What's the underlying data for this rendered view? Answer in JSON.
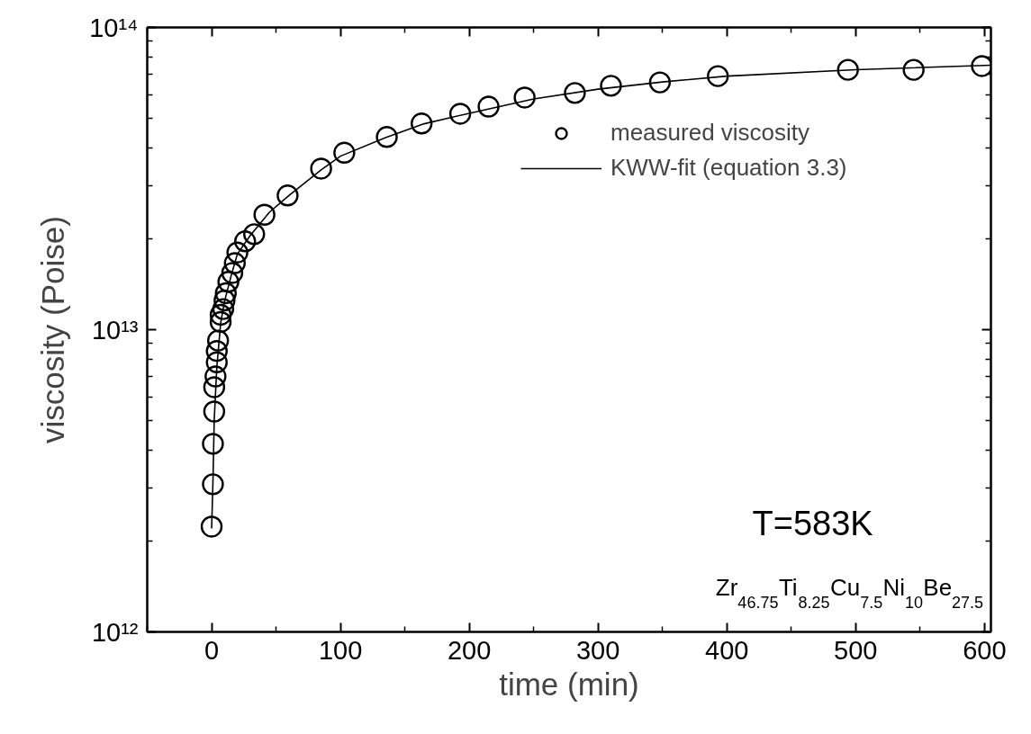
{
  "chart_data": {
    "type": "scatter",
    "xlabel": "time (min)",
    "ylabel": "viscosity (Poise)",
    "log": "y",
    "xlim": [
      -50,
      605
    ],
    "ylim": [
      1000000000000.0,
      100000000000000.0
    ],
    "xticks": [
      0,
      100,
      200,
      300,
      400,
      500,
      600
    ],
    "yticks": [
      {
        "value": 1000000000000.0,
        "label": "10¹²"
      },
      {
        "value": 10000000000000.0,
        "label": "10¹³"
      },
      {
        "value": 100000000000000.0,
        "label": "10¹⁴"
      }
    ],
    "grid": false,
    "legend": "top right",
    "annotations": [
      "T=583K",
      "Zr$_{46.75}$Ti$_{8.25}$Cu$_{7.5}$Ni$_{10}$Be$_{27.5}$"
    ],
    "series": [
      {
        "name": "measured viscosity",
        "marker": "circle",
        "color": "#000000",
        "x": [
          0,
          1,
          1,
          2,
          2,
          3,
          4,
          4,
          5,
          7,
          7,
          9,
          10,
          11,
          13,
          16,
          18,
          20,
          26,
          33,
          41,
          59,
          85,
          103,
          136,
          163,
          193,
          215,
          243,
          282,
          310,
          348,
          393,
          494,
          545,
          598
        ],
        "values": [
          2230000000000.0,
          3080000000000.0,
          4190000000000.0,
          5360000000000.0,
          6450000000000.0,
          7000000000000.0,
          7800000000000.0,
          8500000000000.0,
          9200000000000.0,
          10600000000000.0,
          11200000000000.0,
          11700000000000.0,
          12500000000000.0,
          13200000000000.0,
          14400000000000.0,
          15400000000000.0,
          16600000000000.0,
          18000000000000.0,
          19600000000000.0,
          20700000000000.0,
          24000000000000.0,
          27800000000000.0,
          34100000000000.0,
          38500000000000.0,
          43400000000000.0,
          48100000000000.0,
          51800000000000.0,
          54700000000000.0,
          58600000000000.0,
          60700000000000.0,
          64100000000000.0,
          65800000000000.0,
          69000000000000.0,
          72400000000000.0,
          72400000000000.0,
          74500000000000.0
        ]
      },
      {
        "name": "KWW-fit (equation 3.3)",
        "type": "line",
        "line_style": "solid",
        "color": "#000000",
        "x": [
          0,
          1,
          2,
          4,
          7,
          10,
          15,
          20,
          30,
          45,
          60,
          85,
          100,
          135,
          165,
          200,
          250,
          300,
          350,
          400,
          500,
          605
        ],
        "values": [
          2200000000000.0,
          3100000000000.0,
          5000000000000.0,
          7500000000000.0,
          10500000000000.0,
          12400000000000.0,
          15000000000000.0,
          17800000000000.0,
          20500000000000.0,
          24500000000000.0,
          27800000000000.0,
          33800000000000.0,
          37500000000000.0,
          43200000000000.0,
          48000000000000.0,
          52000000000000.0,
          58000000000000.0,
          62500000000000.0,
          66000000000000.0,
          69000000000000.0,
          72500000000000.0,
          75000000000000.0
        ]
      }
    ]
  }
}
